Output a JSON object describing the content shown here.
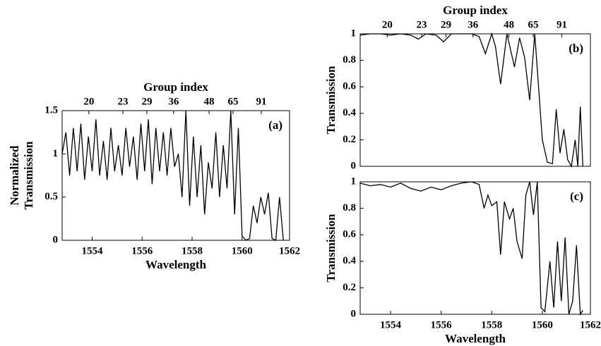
{
  "chart_data": [
    {
      "type": "line",
      "annotation": "(a)",
      "x2label": "Group index",
      "xlabel": "Wavelength",
      "ylabel": [
        "Normalized",
        "Transmission"
      ],
      "x2ticks": [
        {
          "value": 1553.87,
          "label": "20"
        },
        {
          "value": 1555.23,
          "label": "23"
        },
        {
          "value": 1556.19,
          "label": "29"
        },
        {
          "value": 1557.26,
          "label": "36"
        },
        {
          "value": 1558.68,
          "label": "48"
        },
        {
          "value": 1559.64,
          "label": "65"
        },
        {
          "value": 1560.77,
          "label": "91"
        }
      ],
      "xlim": [
        1552.8,
        1561.9
      ],
      "xticks": [
        1554,
        1556,
        1558,
        1560,
        1562
      ],
      "ylim": [
        0,
        1.5
      ],
      "yticks": [
        0,
        0.5,
        1,
        1.5
      ],
      "series": [
        {
          "color": "#000000",
          "x": [
            1552.8,
            1552.95,
            1553.1,
            1553.25,
            1553.4,
            1553.55,
            1553.7,
            1553.85,
            1554.0,
            1554.15,
            1554.3,
            1554.45,
            1554.6,
            1554.75,
            1554.9,
            1555.05,
            1555.2,
            1555.35,
            1555.5,
            1555.65,
            1555.8,
            1555.95,
            1556.1,
            1556.25,
            1556.4,
            1556.55,
            1556.7,
            1556.85,
            1557.0,
            1557.15,
            1557.3,
            1557.45,
            1557.6,
            1557.75,
            1557.9,
            1558.05,
            1558.2,
            1558.35,
            1558.5,
            1558.65,
            1558.8,
            1558.95,
            1559.1,
            1559.25,
            1559.4,
            1559.55,
            1559.7,
            1559.85,
            1560.0,
            1560.15,
            1560.3,
            1560.45,
            1560.6,
            1560.75,
            1560.9,
            1561.05,
            1561.2,
            1561.35,
            1561.5,
            1561.65
          ],
          "values": [
            1.0,
            1.25,
            0.75,
            1.3,
            0.8,
            1.35,
            0.7,
            1.2,
            0.8,
            1.4,
            0.75,
            1.15,
            0.7,
            1.3,
            0.8,
            1.1,
            0.75,
            1.3,
            0.85,
            1.2,
            0.7,
            1.35,
            0.8,
            1.4,
            0.65,
            1.3,
            0.8,
            1.25,
            0.75,
            1.3,
            0.85,
            1.0,
            0.5,
            1.5,
            0.4,
            1.2,
            0.5,
            1.1,
            0.3,
            0.9,
            0.6,
            1.25,
            0.5,
            1.1,
            0.6,
            1.5,
            0.3,
            1.3,
            0.05,
            0,
            0.02,
            0.4,
            0.2,
            0.5,
            0.3,
            0.55,
            0.02,
            0,
            0.5,
            0
          ]
        }
      ]
    },
    {
      "type": "line",
      "annotation": "(b)",
      "x2label": "Group index",
      "ylabel": [
        "Transmission"
      ],
      "x2ticks": [
        {
          "value": 1553.87,
          "label": "20"
        },
        {
          "value": 1555.23,
          "label": "23"
        },
        {
          "value": 1556.19,
          "label": "29"
        },
        {
          "value": 1557.26,
          "label": "36"
        },
        {
          "value": 1558.68,
          "label": "48"
        },
        {
          "value": 1559.64,
          "label": "65"
        },
        {
          "value": 1560.77,
          "label": "91"
        }
      ],
      "xlim": [
        1552.8,
        1561.9
      ],
      "ylim": [
        0,
        1
      ],
      "yticks": [
        0,
        0.2,
        0.4,
        0.6,
        0.8,
        1
      ],
      "series": [
        {
          "color": "#000000",
          "x": [
            1552.8,
            1553.2,
            1553.6,
            1554.0,
            1554.4,
            1554.8,
            1555.1,
            1555.4,
            1555.8,
            1556.1,
            1556.4,
            1556.8,
            1557.2,
            1557.5,
            1557.75,
            1558.0,
            1558.15,
            1558.35,
            1558.6,
            1558.9,
            1559.1,
            1559.3,
            1559.5,
            1559.7,
            1559.85,
            1560.0,
            1560.2,
            1560.4,
            1560.55,
            1560.7,
            1560.85,
            1561.0,
            1561.15,
            1561.3,
            1561.4,
            1561.5,
            1561.6
          ],
          "values": [
            0.99,
            1.0,
            1.0,
            0.99,
            1.0,
            0.99,
            0.96,
            1.0,
            0.99,
            0.94,
            1.0,
            1.0,
            1.0,
            0.98,
            0.85,
            1.0,
            0.9,
            0.62,
            1.0,
            0.75,
            0.97,
            0.82,
            0.5,
            1.0,
            0.6,
            0.2,
            0.03,
            0.02,
            0.43,
            0.1,
            0.28,
            0.05,
            0,
            0.2,
            0,
            0.45,
            0
          ]
        }
      ]
    },
    {
      "type": "line",
      "annotation": "(c)",
      "xlabel": "Wavelength",
      "ylabel": [
        "Transmission"
      ],
      "xlim": [
        1552.8,
        1561.9
      ],
      "xticks": [
        1554,
        1556,
        1558,
        1560,
        1562
      ],
      "ylim": [
        0,
        1
      ],
      "yticks": [
        0,
        0.2,
        0.4,
        0.6,
        0.8,
        1
      ],
      "series": [
        {
          "color": "#000000",
          "x": [
            1552.8,
            1553.2,
            1553.6,
            1554.0,
            1554.4,
            1554.8,
            1555.2,
            1555.6,
            1556.0,
            1556.4,
            1556.8,
            1557.2,
            1557.5,
            1557.7,
            1557.85,
            1558.0,
            1558.2,
            1558.35,
            1558.5,
            1558.7,
            1558.85,
            1559.0,
            1559.2,
            1559.35,
            1559.5,
            1559.65,
            1559.8,
            1559.95,
            1560.1,
            1560.3,
            1560.45,
            1560.6,
            1560.75,
            1560.9,
            1561.05,
            1561.2,
            1561.35,
            1561.5,
            1561.6
          ],
          "values": [
            0.99,
            0.97,
            0.98,
            0.96,
            0.99,
            0.95,
            0.93,
            0.96,
            0.94,
            0.97,
            0.99,
            1.0,
            0.98,
            0.8,
            0.9,
            0.82,
            0.85,
            0.45,
            0.85,
            0.72,
            0.8,
            0.55,
            0.42,
            0.9,
            1.0,
            0.75,
            1.0,
            0.05,
            0.02,
            0.4,
            0.05,
            0.55,
            0.1,
            0.58,
            0,
            0.1,
            0.52,
            0,
            0.03
          ]
        }
      ]
    }
  ]
}
